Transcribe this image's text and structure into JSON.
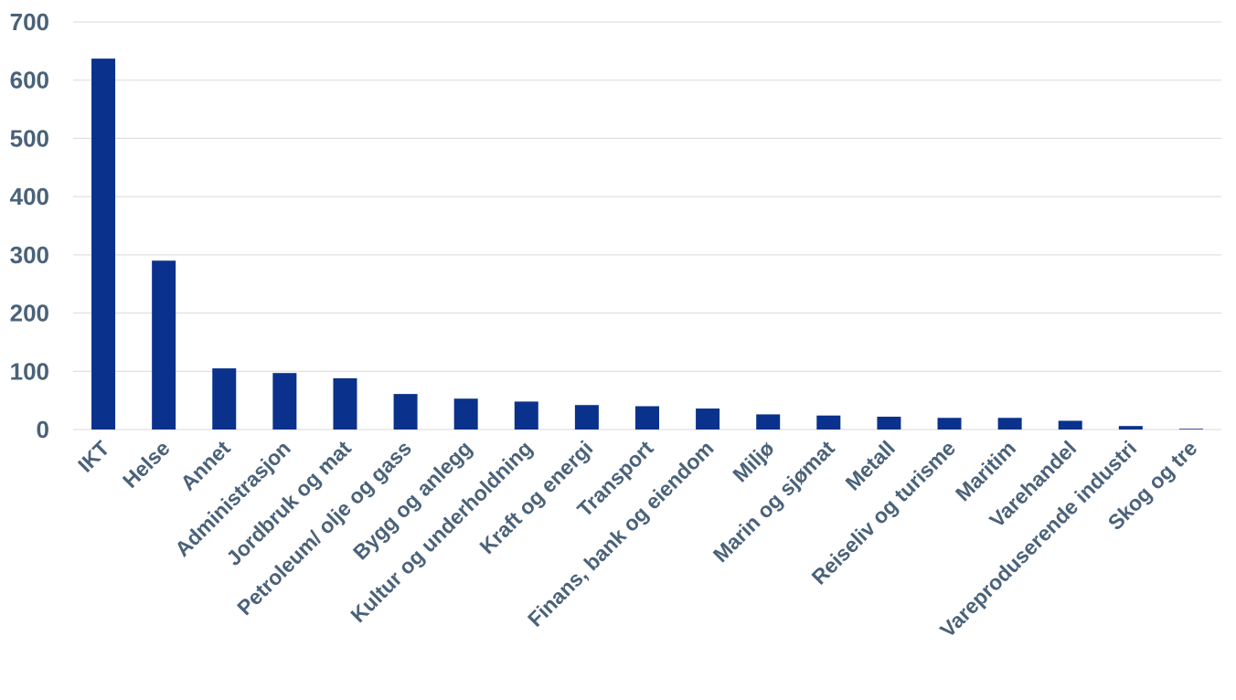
{
  "chart_data": {
    "type": "bar",
    "title": "",
    "xlabel": "",
    "ylabel": "",
    "ylim": [
      0,
      700
    ],
    "yticks": [
      0,
      100,
      200,
      300,
      400,
      500,
      600,
      700
    ],
    "grid": true,
    "legend": "none",
    "categories": [
      "IKT",
      "Helse",
      "Annet",
      "Administrasjon",
      "Jordbruk og mat",
      "Petroleum/ olje og gass",
      "Bygg og anlegg",
      "Kultur og underholdning",
      "Kraft og energi",
      "Transport",
      "Finans, bank og eiendom",
      "Miljø",
      "Marin og sjømat",
      "Metall",
      "Reiseliv og turisme",
      "Maritim",
      "Varehandel",
      "Vareproduserende industri",
      "Skog og tre"
    ],
    "values": [
      637,
      290,
      105,
      97,
      88,
      61,
      53,
      48,
      42,
      40,
      36,
      26,
      24,
      22,
      20,
      20,
      15,
      6,
      1
    ],
    "colors": {
      "bar": "#0a318c",
      "grid": "#d9d9d9",
      "tick_label": "#4a6279"
    }
  }
}
